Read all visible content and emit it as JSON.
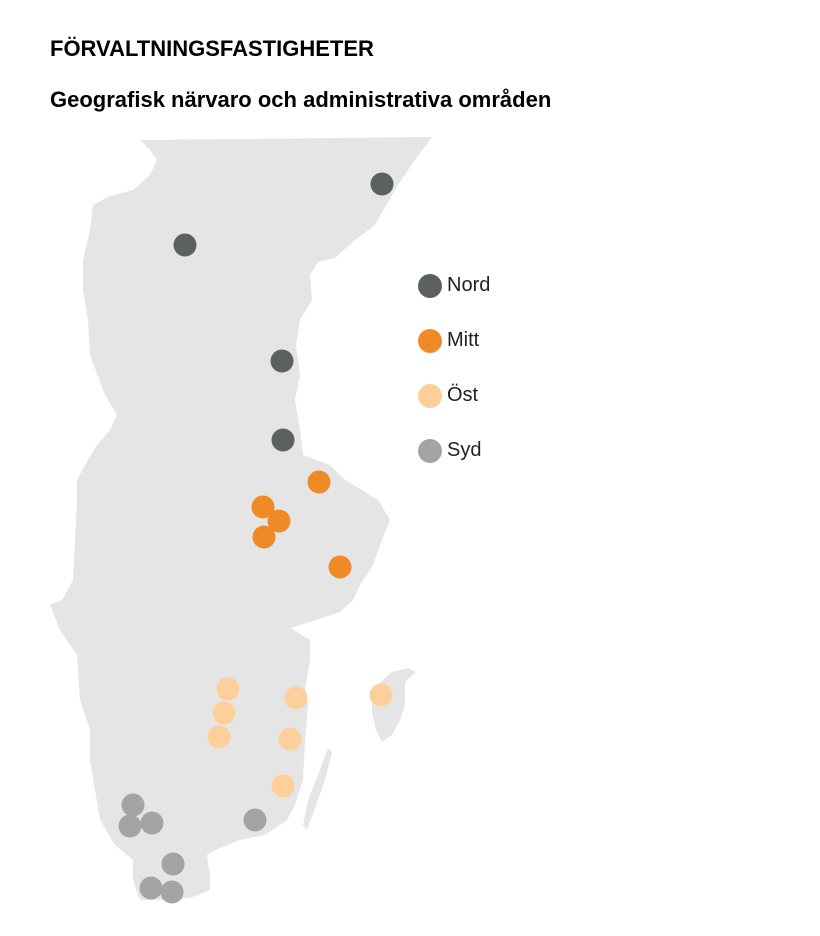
{
  "title": "FÖRVALTNINGSFASTIGHETER",
  "subtitle": "Geografisk närvaro och administrativa områden",
  "map": {
    "land_color": "#e5e5e5",
    "regions": [
      {
        "name": "Nord",
        "color": "#5b6061",
        "location_count": 4
      },
      {
        "name": "Mitt",
        "color": "#f08a26",
        "location_count": 5
      },
      {
        "name": "Öst",
        "color": "#fdd09b",
        "location_count": 7
      },
      {
        "name": "Syd",
        "color": "#a3a4a5",
        "location_count": 7
      }
    ]
  }
}
